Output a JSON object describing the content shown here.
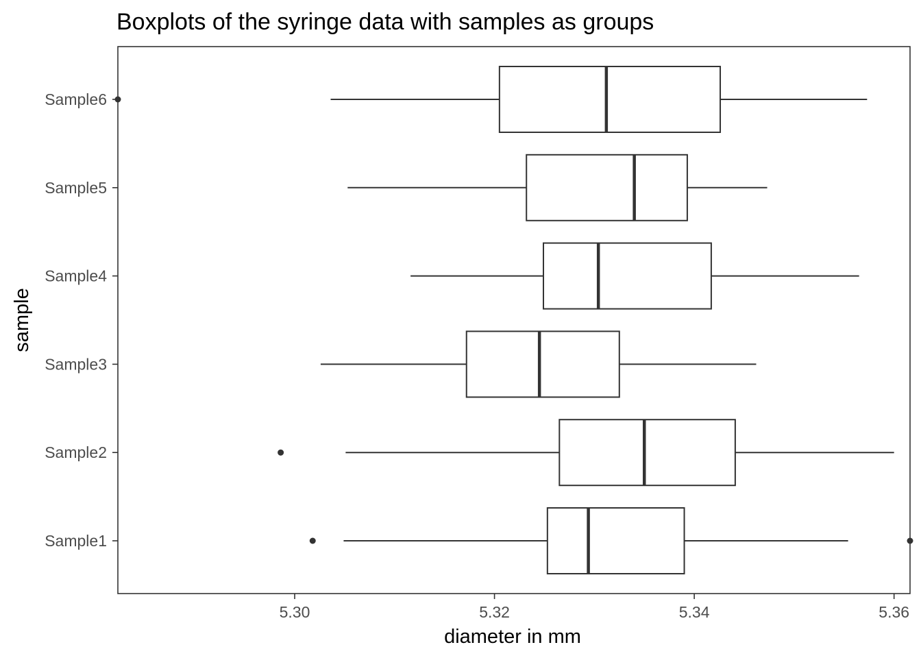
{
  "chart_data": {
    "type": "boxplot",
    "title": "Boxplots of the syringe data with samples as groups",
    "xlabel": "diameter in mm",
    "ylabel": "sample",
    "xlim": [
      5.2823,
      5.3616
    ],
    "x_ticks": [
      {
        "value": 5.3,
        "label": "5.30"
      },
      {
        "value": 5.32,
        "label": "5.32"
      },
      {
        "value": 5.34,
        "label": "5.34"
      },
      {
        "value": 5.36,
        "label": "5.36"
      }
    ],
    "grid": false,
    "orientation": "horizontal",
    "colors": {
      "stroke": "#333333",
      "fill": "#ffffff",
      "tick_text": "#4d4d4d"
    },
    "series": [
      {
        "name": "Sample1",
        "whisker_low": 5.3049,
        "q1": 5.3253,
        "median": 5.3294,
        "q3": 5.339,
        "whisker_high": 5.3554,
        "outliers": [
          5.3018,
          5.3616
        ]
      },
      {
        "name": "Sample2",
        "whisker_low": 5.3051,
        "q1": 5.3265,
        "median": 5.335,
        "q3": 5.3441,
        "whisker_high": 5.36,
        "outliers": [
          5.2986
        ]
      },
      {
        "name": "Sample3",
        "whisker_low": 5.3026,
        "q1": 5.3172,
        "median": 5.3245,
        "q3": 5.3325,
        "whisker_high": 5.3462,
        "outliers": []
      },
      {
        "name": "Sample4",
        "whisker_low": 5.3116,
        "q1": 5.3249,
        "median": 5.3304,
        "q3": 5.3417,
        "whisker_high": 5.3565,
        "outliers": []
      },
      {
        "name": "Sample5",
        "whisker_low": 5.3053,
        "q1": 5.3232,
        "median": 5.334,
        "q3": 5.3393,
        "whisker_high": 5.3473,
        "outliers": []
      },
      {
        "name": "Sample6",
        "whisker_low": 5.3036,
        "q1": 5.3205,
        "median": 5.3312,
        "q3": 5.3426,
        "whisker_high": 5.3573,
        "outliers": [
          5.2823
        ]
      }
    ]
  }
}
